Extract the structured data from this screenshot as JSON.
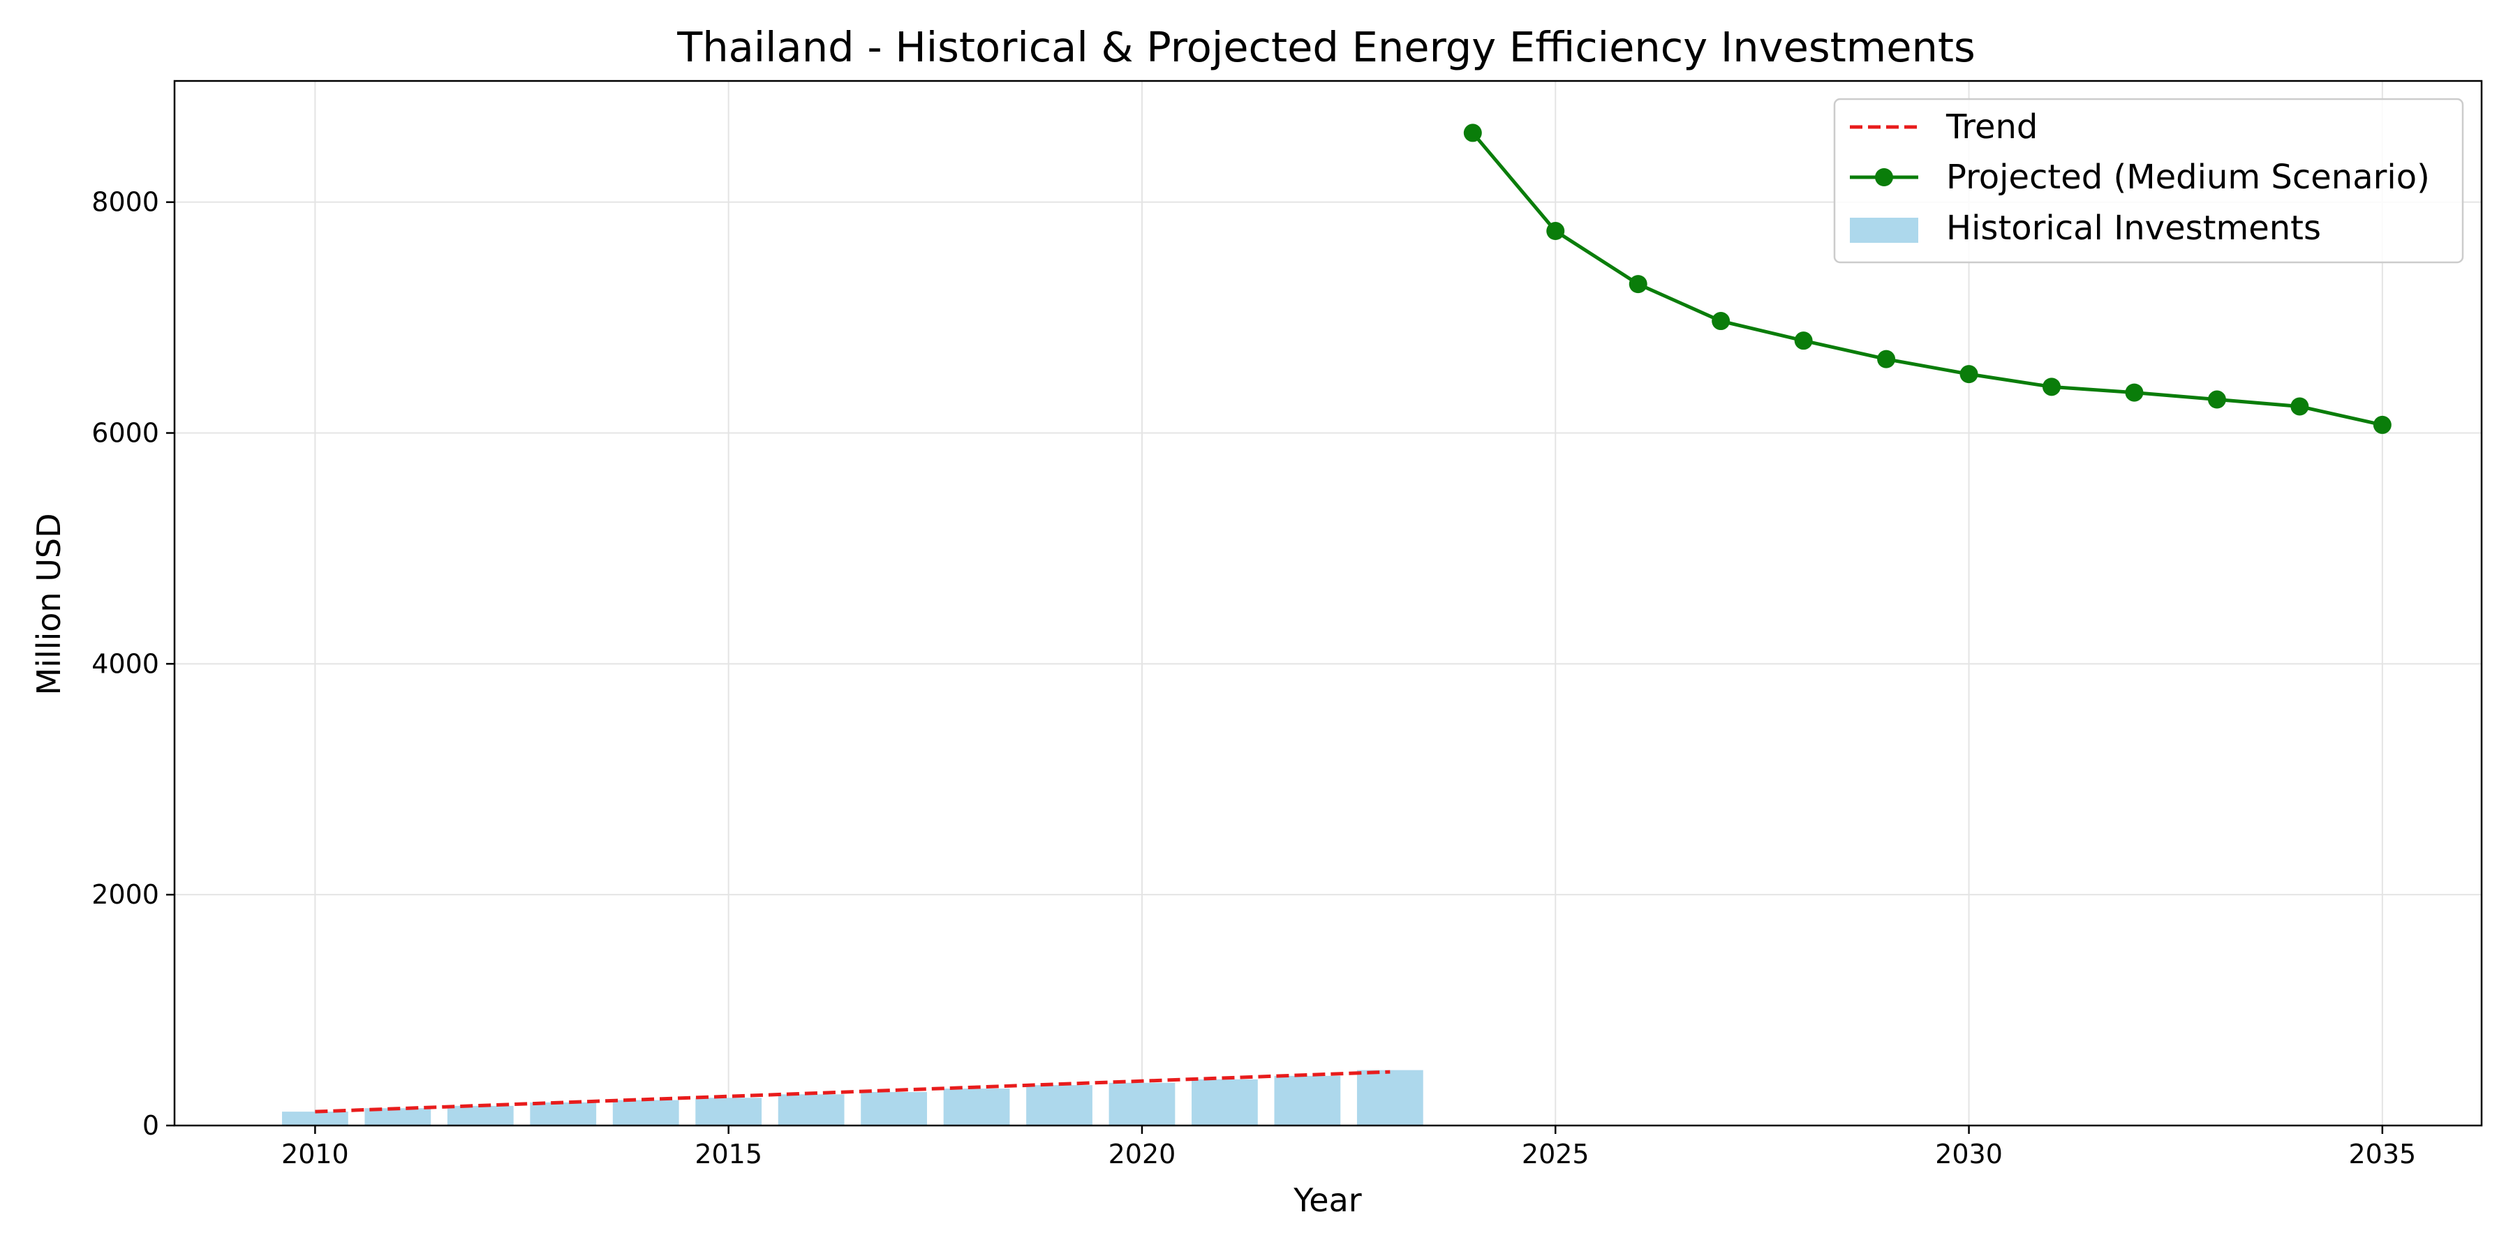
{
  "colors": {
    "bars": "#add8ec",
    "trend": "#e81c1c",
    "projected": "#0a7d0a",
    "grid": "#e4e4e4",
    "axes": "#000000"
  },
  "chart_data": {
    "type": "bar+line",
    "title": "Thailand - Historical & Projected Energy Efficiency Investments",
    "xlabel": "Year",
    "ylabel": "Million USD",
    "xlim": [
      2008.3,
      2036.2
    ],
    "ylim": [
      0,
      9050
    ],
    "xticks": [
      2010,
      2015,
      2020,
      2025,
      2030,
      2035
    ],
    "yticks": [
      0,
      2000,
      4000,
      6000,
      8000
    ],
    "grid": true,
    "legend_position": "top-right",
    "historical": {
      "name": "Historical Investments",
      "x": [
        2010,
        2011,
        2012,
        2013,
        2014,
        2015,
        2016,
        2017,
        2018,
        2019,
        2020,
        2021,
        2022,
        2023
      ],
      "values": [
        120,
        150,
        170,
        200,
        220,
        240,
        270,
        290,
        320,
        350,
        370,
        400,
        430,
        480
      ]
    },
    "trend": {
      "name": "Trend",
      "x": [
        2010,
        2023
      ],
      "values": [
        120,
        465
      ]
    },
    "projected": {
      "name": "Projected (Medium Scenario)",
      "x": [
        2024,
        2025,
        2026,
        2027,
        2028,
        2029,
        2030,
        2031,
        2032,
        2033,
        2034,
        2035
      ],
      "values": [
        8600,
        7750,
        7290,
        6970,
        6800,
        6640,
        6510,
        6400,
        6350,
        6290,
        6230,
        6070
      ]
    },
    "legend": [
      "Trend",
      "Projected (Medium Scenario)",
      "Historical Investments"
    ]
  }
}
